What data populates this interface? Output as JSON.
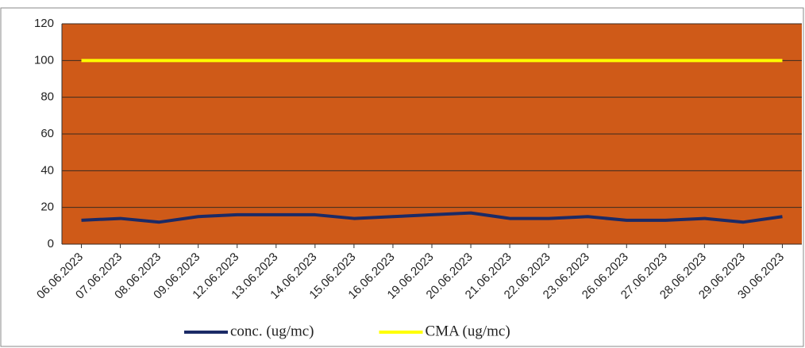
{
  "chart_data": {
    "type": "line",
    "categories": [
      "06.06.2023",
      "07.06.2023",
      "08.06.2023",
      "09.06.2023",
      "12.06.2023",
      "13.06.2023",
      "14.06.2023",
      "15.06.2023",
      "16.06.2023",
      "19.06.2023",
      "20.06.2023",
      "21.06.2023",
      "22.06.2023",
      "23.06.2023",
      "26.06.2023",
      "27.06.2023",
      "28.06.2023",
      "29.06.2023",
      "30.06.2023"
    ],
    "series": [
      {
        "name": "conc. (ug/mc)",
        "color": "#1b2a66",
        "values": [
          13,
          14,
          12,
          15,
          16,
          16,
          16,
          14,
          15,
          16,
          17,
          14,
          14,
          15,
          13,
          13,
          14,
          12,
          15
        ]
      },
      {
        "name": "CMA (ug/mc)",
        "color": "#ffff00",
        "values": [
          100,
          100,
          100,
          100,
          100,
          100,
          100,
          100,
          100,
          100,
          100,
          100,
          100,
          100,
          100,
          100,
          100,
          100,
          100
        ]
      }
    ],
    "ylim": [
      0,
      120
    ],
    "yticks": [
      0,
      20,
      40,
      60,
      80,
      100,
      120
    ],
    "grid": true,
    "legend": "bottom",
    "plot_color": "#cf5a18"
  }
}
